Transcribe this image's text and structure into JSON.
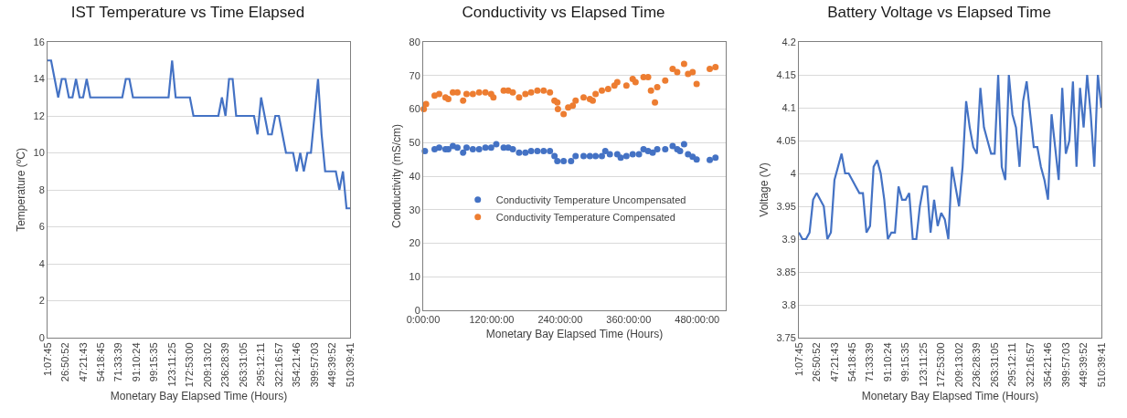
{
  "chart_data": [
    {
      "type": "line",
      "title": "IST Temperature vs Time Elapsed",
      "xlabel": "Monetary Bay Elapsed Time (Hours)",
      "ylabel": "Temperature (ºC)",
      "ylim": [
        0,
        16
      ],
      "yticks": [
        0,
        2,
        4,
        6,
        8,
        10,
        12,
        14,
        16
      ],
      "grid": "y",
      "marker": "none",
      "line_style": "solid",
      "legend": false,
      "categories": [
        "1:07:45",
        null,
        null,
        null,
        null,
        "26:50:52",
        null,
        null,
        null,
        null,
        "47:21:43",
        null,
        null,
        null,
        null,
        "54:18:45",
        null,
        null,
        null,
        null,
        "71:33:39",
        null,
        null,
        null,
        null,
        "91:10:24",
        null,
        null,
        null,
        null,
        "99:15:35",
        null,
        null,
        null,
        null,
        "123:11:25",
        null,
        null,
        null,
        null,
        "172:53:00",
        null,
        null,
        null,
        null,
        "209:13:02",
        null,
        null,
        null,
        null,
        "236:28:39",
        null,
        null,
        null,
        null,
        "263:31:05",
        null,
        null,
        null,
        null,
        "295:12:11",
        null,
        null,
        null,
        null,
        "322:16:57",
        null,
        null,
        null,
        null,
        "354:21:46",
        null,
        null,
        null,
        null,
        "399:57:03",
        null,
        null,
        null,
        null,
        "449:39:52",
        null,
        null,
        null,
        null,
        "510:39:41"
      ],
      "series": [
        {
          "color": "#4472c4",
          "values": [
            15,
            15,
            14,
            13,
            14,
            14,
            13,
            13,
            14,
            13,
            13,
            14,
            13,
            13,
            13,
            13,
            13,
            13,
            13,
            13,
            13,
            13,
            14,
            14,
            13,
            13,
            13,
            13,
            13,
            13,
            13,
            13,
            13,
            13,
            13,
            15,
            13,
            13,
            13,
            13,
            13,
            12,
            12,
            12,
            12,
            12,
            12,
            12,
            12,
            13,
            12,
            14,
            14,
            12,
            12,
            12,
            12,
            12,
            12,
            11,
            13,
            12,
            11,
            11,
            12,
            12,
            11,
            10,
            10,
            10,
            9,
            10,
            9,
            10,
            10,
            12,
            14,
            11,
            9,
            9,
            9,
            9,
            8,
            9,
            7,
            7
          ]
        }
      ]
    },
    {
      "type": "scatter",
      "title": "Conductivity vs Elapsed Time",
      "xlabel": "Monetary Bay Elapsed Time (Hours)",
      "ylabel": "Conductivity (mS/cm)",
      "xlim": [
        0,
        530
      ],
      "xticks": [
        {
          "value": 0,
          "label": "0:00:00"
        },
        {
          "value": 120,
          "label": "120:00:00"
        },
        {
          "value": 240,
          "label": "240:00:00"
        },
        {
          "value": 360,
          "label": "360:00:00"
        },
        {
          "value": 480,
          "label": "480:00:00"
        }
      ],
      "ylim": [
        0,
        80
      ],
      "yticks": [
        0,
        10,
        20,
        30,
        40,
        50,
        60,
        70,
        80
      ],
      "grid": "y",
      "marker": "circle",
      "legend": "center",
      "series": [
        {
          "name": "Conductivity Temperature Uncompensated",
          "color": "#4472c4",
          "x": [
            3,
            20,
            28,
            39,
            44,
            52,
            60,
            70,
            76,
            87,
            98,
            109,
            119,
            128,
            141,
            149,
            157,
            168,
            179,
            189,
            200,
            211,
            222,
            230,
            235,
            246,
            259,
            267,
            281,
            292,
            302,
            313,
            319,
            327,
            340,
            346,
            356,
            367,
            378,
            386,
            394,
            402,
            410,
            424,
            437,
            445,
            450,
            457,
            464,
            472,
            479,
            502,
            512
          ],
          "values": [
            47.5,
            48,
            48.5,
            48,
            48,
            49,
            48.5,
            47,
            48.5,
            48,
            48,
            48.5,
            48.5,
            49.5,
            48.5,
            48.5,
            48,
            47,
            47,
            47.5,
            47.5,
            47.5,
            47.5,
            46,
            44.5,
            44.5,
            44.5,
            46,
            46,
            46,
            46,
            46,
            47.5,
            46.5,
            46.5,
            45.5,
            46,
            46.5,
            46.5,
            48,
            47.5,
            47,
            48,
            48,
            49,
            48,
            47.5,
            49.5,
            46.5,
            45.8,
            45,
            44.8,
            45.5
          ]
        },
        {
          "name": "Conductivity Temperature Compensated",
          "color": "#ed7d31",
          "x": [
            1,
            5,
            20,
            28,
            39,
            44,
            52,
            60,
            70,
            76,
            87,
            98,
            109,
            119,
            123,
            141,
            149,
            157,
            168,
            179,
            189,
            200,
            211,
            222,
            230,
            235,
            236,
            246,
            254,
            262,
            267,
            281,
            292,
            297,
            302,
            313,
            324,
            335,
            340,
            356,
            367,
            372,
            386,
            394,
            399,
            406,
            410,
            424,
            437,
            445,
            457,
            464,
            472,
            479,
            502,
            512
          ],
          "values": [
            60,
            61.5,
            64,
            64.5,
            63.5,
            63,
            65,
            65,
            62.5,
            64.5,
            64.5,
            65,
            65,
            64.5,
            63.5,
            65.5,
            65.5,
            65,
            63.5,
            64.5,
            65,
            65.5,
            65.5,
            65,
            62.5,
            62,
            60,
            58.5,
            60.5,
            61,
            62.5,
            63.5,
            63,
            62.5,
            64.5,
            65.5,
            66,
            67,
            68,
            67,
            69,
            68,
            69.5,
            69.5,
            65.5,
            62,
            66.5,
            68.5,
            72,
            71,
            73.5,
            70.5,
            71,
            67.5,
            72,
            72.5
          ]
        }
      ]
    },
    {
      "type": "line",
      "title": "Battery Voltage vs Elapsed Time",
      "xlabel": "Monetary Bay Elapsed Time (Hours)",
      "ylabel": "Voltage (V)",
      "ylim": [
        3.75,
        4.2
      ],
      "yticks": [
        {
          "value": 3.75,
          "label": "3.75"
        },
        {
          "value": 3.8,
          "label": "3.8"
        },
        {
          "value": 3.85,
          "label": "3.85"
        },
        {
          "value": 3.9,
          "label": "3.9"
        },
        {
          "value": 3.95,
          "label": "3.95"
        },
        {
          "value": 4,
          "label": "4"
        },
        {
          "value": 4.05,
          "label": "4.05"
        },
        {
          "value": 4.1,
          "label": "4.1"
        },
        {
          "value": 4.15,
          "label": "4.15"
        },
        {
          "value": 4.2,
          "label": "4.2"
        }
      ],
      "grid": "y",
      "marker": "none",
      "line_style": "solid",
      "legend": false,
      "categories": [
        "1:07:45",
        null,
        null,
        null,
        null,
        "26:50:52",
        null,
        null,
        null,
        null,
        "47:21:43",
        null,
        null,
        null,
        null,
        "54:18:45",
        null,
        null,
        null,
        null,
        "71:33:39",
        null,
        null,
        null,
        null,
        "91:10:24",
        null,
        null,
        null,
        null,
        "99:15:35",
        null,
        null,
        null,
        null,
        "123:11:25",
        null,
        null,
        null,
        null,
        "172:53:00",
        null,
        null,
        null,
        null,
        "209:13:02",
        null,
        null,
        null,
        null,
        "236:28:39",
        null,
        null,
        null,
        null,
        "263:31:05",
        null,
        null,
        null,
        null,
        "295:12:11",
        null,
        null,
        null,
        null,
        "322:16:57",
        null,
        null,
        null,
        null,
        "354:21:46",
        null,
        null,
        null,
        null,
        "399:57:03",
        null,
        null,
        null,
        null,
        "449:39:52",
        null,
        null,
        null,
        null,
        "510:39:41"
      ],
      "series": [
        {
          "color": "#4472c4",
          "values": [
            3.91,
            3.9,
            3.9,
            3.91,
            3.96,
            3.97,
            3.96,
            3.95,
            3.9,
            3.91,
            3.99,
            4.01,
            4.03,
            4,
            4,
            3.99,
            3.98,
            3.97,
            3.97,
            3.91,
            3.92,
            4.01,
            4.02,
            4,
            3.96,
            3.9,
            3.91,
            3.91,
            3.98,
            3.96,
            3.96,
            3.97,
            3.9,
            3.9,
            3.95,
            3.98,
            3.98,
            3.91,
            3.96,
            3.92,
            3.94,
            3.93,
            3.9,
            4.01,
            3.98,
            3.95,
            4.01,
            4.11,
            4.07,
            4.04,
            4.03,
            4.13,
            4.07,
            4.05,
            4.03,
            4.03,
            4.15,
            4.01,
            3.99,
            4.15,
            4.09,
            4.07,
            4.01,
            4.11,
            4.14,
            4.09,
            4.04,
            4.04,
            4.01,
            3.99,
            3.96,
            4.09,
            4.04,
            3.99,
            4.13,
            4.03,
            4.05,
            4.14,
            4.01,
            4.13,
            4.07,
            4.15,
            4.09,
            4.01,
            4.15,
            4.1
          ]
        }
      ]
    }
  ]
}
